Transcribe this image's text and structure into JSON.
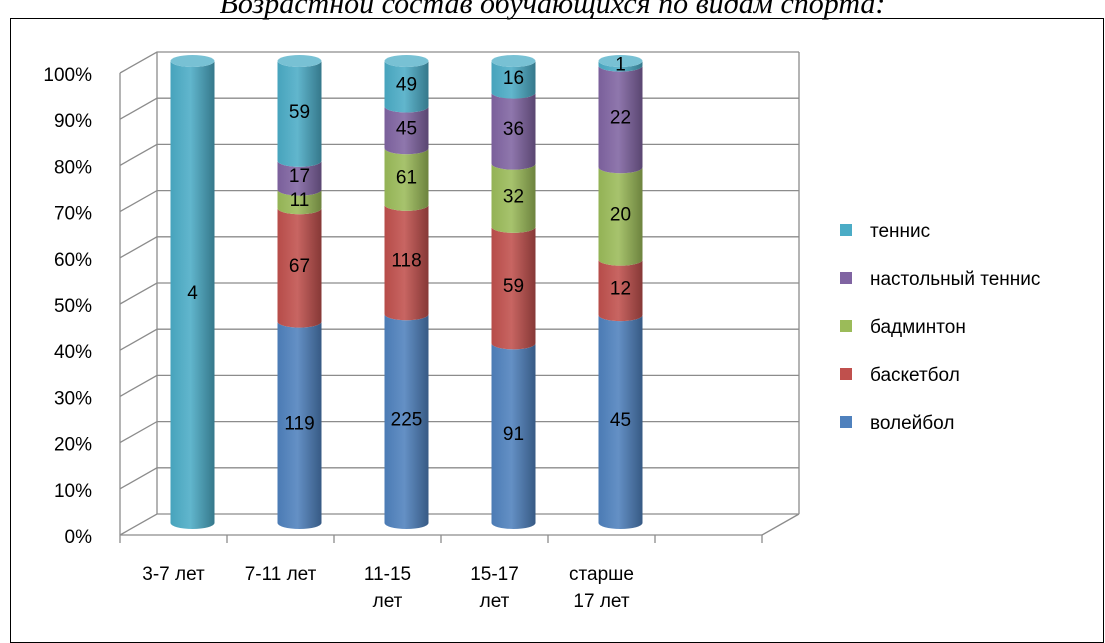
{
  "caption": "Возрастной состав обучающихся по видам спорта:",
  "chart_data": {
    "type": "bar",
    "stacked": "percent",
    "style": "3d-cylinder",
    "categories": [
      [
        "3-7 лет"
      ],
      [
        "7-11 лет"
      ],
      [
        "11-15",
        "лет"
      ],
      [
        "15-17",
        "лет"
      ],
      [
        "старше",
        "17 лет"
      ]
    ],
    "series": [
      {
        "name": "волейбол",
        "color": "#4f81bd",
        "values": [
          0,
          119,
          225,
          91,
          45
        ]
      },
      {
        "name": "баскетбол",
        "color": "#c0504d",
        "values": [
          0,
          67,
          118,
          59,
          12
        ]
      },
      {
        "name": "бадминтон",
        "color": "#9bbb59",
        "values": [
          0,
          11,
          61,
          32,
          20
        ]
      },
      {
        "name": "настольный теннис",
        "color": "#8064a2",
        "values": [
          0,
          17,
          45,
          36,
          22
        ]
      },
      {
        "name": "теннис",
        "color": "#4bacc6",
        "values": [
          4,
          59,
          49,
          16,
          1
        ]
      }
    ],
    "yticks": [
      "0%",
      "10%",
      "20%",
      "30%",
      "40%",
      "50%",
      "60%",
      "70%",
      "80%",
      "90%",
      "100%"
    ],
    "ylim": [
      0,
      100
    ],
    "grid": true,
    "legend": "right"
  }
}
